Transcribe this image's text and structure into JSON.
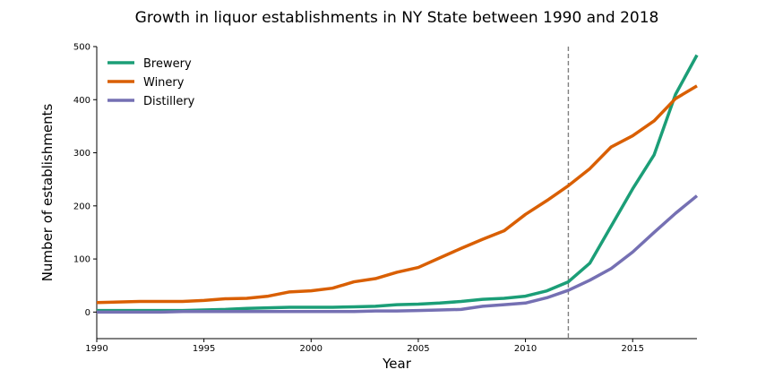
{
  "chart_data": {
    "type": "line",
    "title": "Growth in liquor establishments in NY State between 1990 and 2018",
    "xlabel": "Year",
    "ylabel": "Number of establishments",
    "xlim": [
      1990,
      2018
    ],
    "ylim": [
      -50,
      500
    ],
    "x_ticks": [
      1990,
      1995,
      2000,
      2005,
      2010,
      2015
    ],
    "y_ticks": [
      0,
      100,
      200,
      300,
      400,
      500
    ],
    "grid": false,
    "legend_position": "top-left",
    "reference_line": {
      "x": 2012,
      "style": "dashed",
      "color": "#808080"
    },
    "x": [
      1990,
      1991,
      1992,
      1993,
      1994,
      1995,
      1996,
      1997,
      1998,
      1999,
      2000,
      2001,
      2002,
      2003,
      2004,
      2005,
      2006,
      2007,
      2008,
      2009,
      2010,
      2011,
      2012,
      2013,
      2014,
      2015,
      2016,
      2017,
      2018
    ],
    "series": [
      {
        "name": "Brewery",
        "color": "#1b9e77",
        "values": [
          3,
          3,
          3,
          3,
          3,
          4,
          5,
          7,
          8,
          9,
          9,
          9,
          10,
          11,
          14,
          15,
          17,
          20,
          24,
          26,
          30,
          40,
          57,
          92,
          162,
          232,
          296,
          410,
          484
        ]
      },
      {
        "name": "Winery",
        "color": "#d95f02",
        "values": [
          18,
          19,
          20,
          20,
          20,
          22,
          25,
          26,
          30,
          38,
          40,
          45,
          57,
          63,
          75,
          84,
          102,
          120,
          137,
          153,
          184,
          210,
          238,
          270,
          311,
          332,
          360,
          402,
          426
        ]
      },
      {
        "name": "Distillery",
        "color": "#7570b3",
        "values": [
          0,
          0,
          0,
          0,
          1,
          1,
          1,
          1,
          1,
          1,
          1,
          1,
          1,
          2,
          2,
          3,
          4,
          5,
          11,
          14,
          17,
          27,
          41,
          60,
          82,
          113,
          150,
          186,
          219
        ]
      }
    ]
  }
}
